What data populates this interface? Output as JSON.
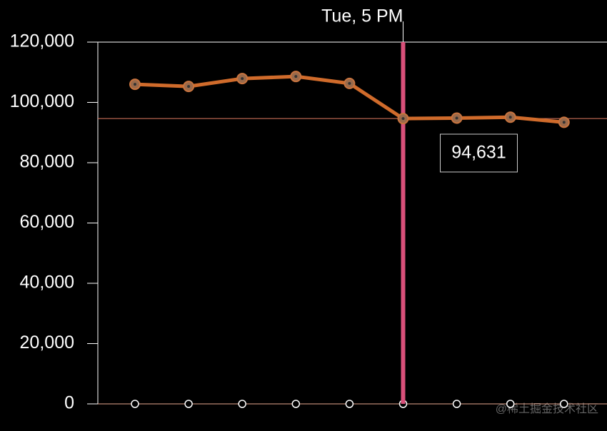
{
  "chart_data": {
    "type": "line",
    "categories": [
      null,
      null,
      null,
      null,
      null,
      "Tue, 5 PM",
      null,
      null,
      null
    ],
    "series": [
      {
        "color": "#d06b2b",
        "values": [
          106000,
          105300,
          107900,
          108600,
          106300,
          94631,
          94800,
          95100,
          93400
        ],
        "value_labels": [
          null,
          null,
          null,
          null,
          null,
          "94,631",
          null,
          null,
          null
        ]
      }
    ],
    "ylim": [
      0,
      120000
    ],
    "yticks": [
      {
        "value": 0,
        "label": "0"
      },
      {
        "value": 20000,
        "label": "20,000"
      },
      {
        "value": 40000,
        "label": "40,000"
      },
      {
        "value": 60000,
        "label": "60,000"
      },
      {
        "value": 80000,
        "label": "80,000"
      },
      {
        "value": 100000,
        "label": "100,000"
      },
      {
        "value": 120000,
        "label": "120,000"
      }
    ],
    "crosshair_color": "#d9507a",
    "watermark": "@稀土掘金技术社区"
  }
}
